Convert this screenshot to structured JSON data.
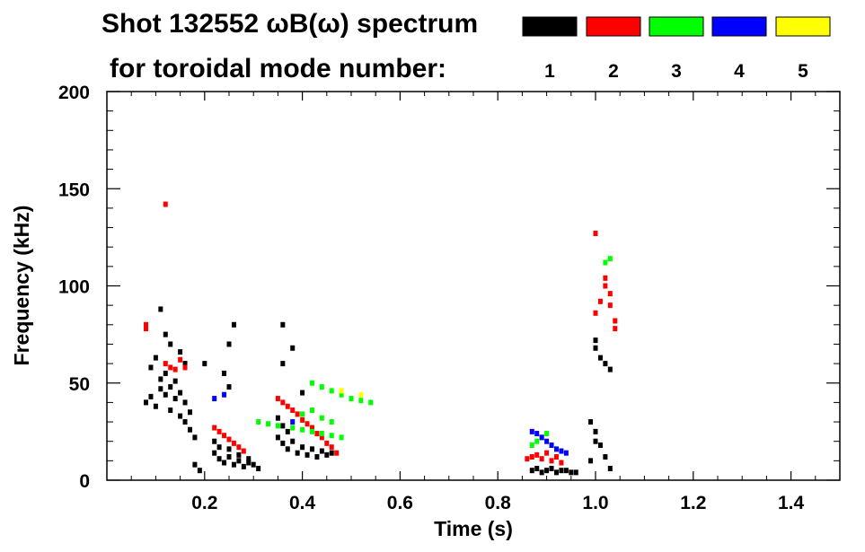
{
  "header": {
    "title_line1": "Shot 132552 ωB(ω) spectrum",
    "title_line2": "for toroidal mode number:"
  },
  "legend": [
    {
      "label": "1",
      "color": "#000000"
    },
    {
      "label": "2",
      "color": "#ff0000"
    },
    {
      "label": "3",
      "color": "#00ff00"
    },
    {
      "label": "4",
      "color": "#0000ff"
    },
    {
      "label": "5",
      "color": "#ffff00"
    }
  ],
  "chart_data": {
    "type": "scatter",
    "title": "Shot 132552 ωB(ω) spectrum",
    "xlabel": "Time (s)",
    "ylabel": "Frequency (kHz)",
    "xlim": [
      0.0,
      1.5
    ],
    "ylim": [
      0,
      200
    ],
    "xticks": [
      "0.2",
      "0.4",
      "0.6",
      "0.8",
      "1.0",
      "1.2",
      "1.4"
    ],
    "yticks": [
      "0",
      "50",
      "100",
      "150",
      "200"
    ],
    "grid": false,
    "legend_position": "top",
    "series": [
      {
        "name": "1",
        "color": "#000000",
        "points": [
          [
            0.08,
            40
          ],
          [
            0.09,
            43
          ],
          [
            0.1,
            38
          ],
          [
            0.11,
            47
          ],
          [
            0.12,
            44
          ],
          [
            0.13,
            36
          ],
          [
            0.14,
            42
          ],
          [
            0.15,
            33
          ],
          [
            0.16,
            30
          ],
          [
            0.17,
            26
          ],
          [
            0.09,
            58
          ],
          [
            0.1,
            63
          ],
          [
            0.11,
            52
          ],
          [
            0.12,
            55
          ],
          [
            0.13,
            48
          ],
          [
            0.14,
            51
          ],
          [
            0.15,
            45
          ],
          [
            0.16,
            40
          ],
          [
            0.17,
            35
          ],
          [
            0.18,
            22
          ],
          [
            0.11,
            88
          ],
          [
            0.12,
            75
          ],
          [
            0.13,
            70
          ],
          [
            0.15,
            66
          ],
          [
            0.16,
            60
          ],
          [
            0.18,
            8
          ],
          [
            0.19,
            5
          ],
          [
            0.2,
            60
          ],
          [
            0.22,
            14
          ],
          [
            0.23,
            11
          ],
          [
            0.24,
            9
          ],
          [
            0.25,
            12
          ],
          [
            0.26,
            8
          ],
          [
            0.27,
            10
          ],
          [
            0.28,
            7
          ],
          [
            0.29,
            9
          ],
          [
            0.3,
            8
          ],
          [
            0.31,
            6
          ],
          [
            0.22,
            20
          ],
          [
            0.23,
            17
          ],
          [
            0.25,
            16
          ],
          [
            0.27,
            13
          ],
          [
            0.29,
            11
          ],
          [
            0.24,
            55
          ],
          [
            0.25,
            48
          ],
          [
            0.25,
            70
          ],
          [
            0.26,
            80
          ],
          [
            0.35,
            22
          ],
          [
            0.36,
            19
          ],
          [
            0.37,
            16
          ],
          [
            0.38,
            20
          ],
          [
            0.39,
            14
          ],
          [
            0.4,
            17
          ],
          [
            0.41,
            13
          ],
          [
            0.42,
            16
          ],
          [
            0.43,
            12
          ],
          [
            0.44,
            15
          ],
          [
            0.45,
            13
          ],
          [
            0.46,
            14
          ],
          [
            0.35,
            32
          ],
          [
            0.36,
            28
          ],
          [
            0.37,
            25
          ],
          [
            0.36,
            60
          ],
          [
            0.36,
            80
          ],
          [
            0.38,
            68
          ],
          [
            0.4,
            45
          ],
          [
            0.87,
            5
          ],
          [
            0.88,
            6
          ],
          [
            0.89,
            4
          ],
          [
            0.9,
            5
          ],
          [
            0.91,
            6
          ],
          [
            0.92,
            4
          ],
          [
            0.93,
            5
          ],
          [
            0.94,
            5
          ],
          [
            0.95,
            4
          ],
          [
            0.96,
            4
          ],
          [
            0.99,
            30
          ],
          [
            1.0,
            25
          ],
          [
            1.01,
            18
          ],
          [
            1.02,
            12
          ],
          [
            1.03,
            6
          ],
          [
            1.0,
            20
          ],
          [
            0.99,
            10
          ],
          [
            1.0,
            68
          ],
          [
            1.01,
            63
          ],
          [
            1.02,
            60
          ],
          [
            1.03,
            57
          ],
          [
            1.0,
            72
          ]
        ]
      },
      {
        "name": "2",
        "color": "#ff0000",
        "points": [
          [
            0.08,
            78
          ],
          [
            0.08,
            80
          ],
          [
            0.12,
            142
          ],
          [
            0.12,
            60
          ],
          [
            0.13,
            58
          ],
          [
            0.14,
            57
          ],
          [
            0.15,
            62
          ],
          [
            0.16,
            58
          ],
          [
            0.22,
            27
          ],
          [
            0.23,
            25
          ],
          [
            0.24,
            23
          ],
          [
            0.25,
            21
          ],
          [
            0.26,
            19
          ],
          [
            0.27,
            17
          ],
          [
            0.28,
            15
          ],
          [
            0.35,
            42
          ],
          [
            0.36,
            40
          ],
          [
            0.37,
            38
          ],
          [
            0.38,
            36
          ],
          [
            0.39,
            34
          ],
          [
            0.4,
            31
          ],
          [
            0.41,
            29
          ],
          [
            0.42,
            27
          ],
          [
            0.43,
            24
          ],
          [
            0.44,
            22
          ],
          [
            0.45,
            19
          ],
          [
            0.46,
            17
          ],
          [
            0.47,
            14
          ],
          [
            0.86,
            11
          ],
          [
            0.87,
            12
          ],
          [
            0.88,
            13
          ],
          [
            0.89,
            11
          ],
          [
            0.9,
            14
          ],
          [
            0.91,
            10
          ],
          [
            0.92,
            12
          ],
          [
            0.93,
            9
          ],
          [
            1.0,
            86
          ],
          [
            1.01,
            92
          ],
          [
            1.02,
            100
          ],
          [
            1.02,
            104
          ],
          [
            1.03,
            96
          ],
          [
            1.03,
            90
          ],
          [
            1.04,
            82
          ],
          [
            1.04,
            78
          ],
          [
            1.0,
            127
          ]
        ]
      },
      {
        "name": "3",
        "color": "#00ff00",
        "points": [
          [
            0.31,
            30
          ],
          [
            0.33,
            29
          ],
          [
            0.35,
            28
          ],
          [
            0.38,
            27
          ],
          [
            0.4,
            26
          ],
          [
            0.42,
            25
          ],
          [
            0.44,
            24
          ],
          [
            0.46,
            23
          ],
          [
            0.48,
            22
          ],
          [
            0.4,
            34
          ],
          [
            0.42,
            36
          ],
          [
            0.44,
            32
          ],
          [
            0.46,
            30
          ],
          [
            0.42,
            50
          ],
          [
            0.44,
            48
          ],
          [
            0.46,
            46
          ],
          [
            0.48,
            44
          ],
          [
            0.5,
            42
          ],
          [
            0.52,
            41
          ],
          [
            0.54,
            40
          ],
          [
            0.87,
            18
          ],
          [
            0.88,
            20
          ],
          [
            0.89,
            22
          ],
          [
            0.9,
            24
          ],
          [
            1.02,
            112
          ],
          [
            1.03,
            114
          ]
        ]
      },
      {
        "name": "4",
        "color": "#0000ff",
        "points": [
          [
            0.22,
            42
          ],
          [
            0.24,
            44
          ],
          [
            0.38,
            30
          ],
          [
            0.87,
            25
          ],
          [
            0.88,
            24
          ],
          [
            0.89,
            22
          ],
          [
            0.9,
            20
          ],
          [
            0.91,
            18
          ],
          [
            0.92,
            16
          ],
          [
            0.93,
            15
          ],
          [
            0.94,
            14
          ]
        ]
      },
      {
        "name": "5",
        "color": "#ffff00",
        "points": [
          [
            0.48,
            46
          ],
          [
            0.52,
            44
          ]
        ]
      }
    ]
  }
}
